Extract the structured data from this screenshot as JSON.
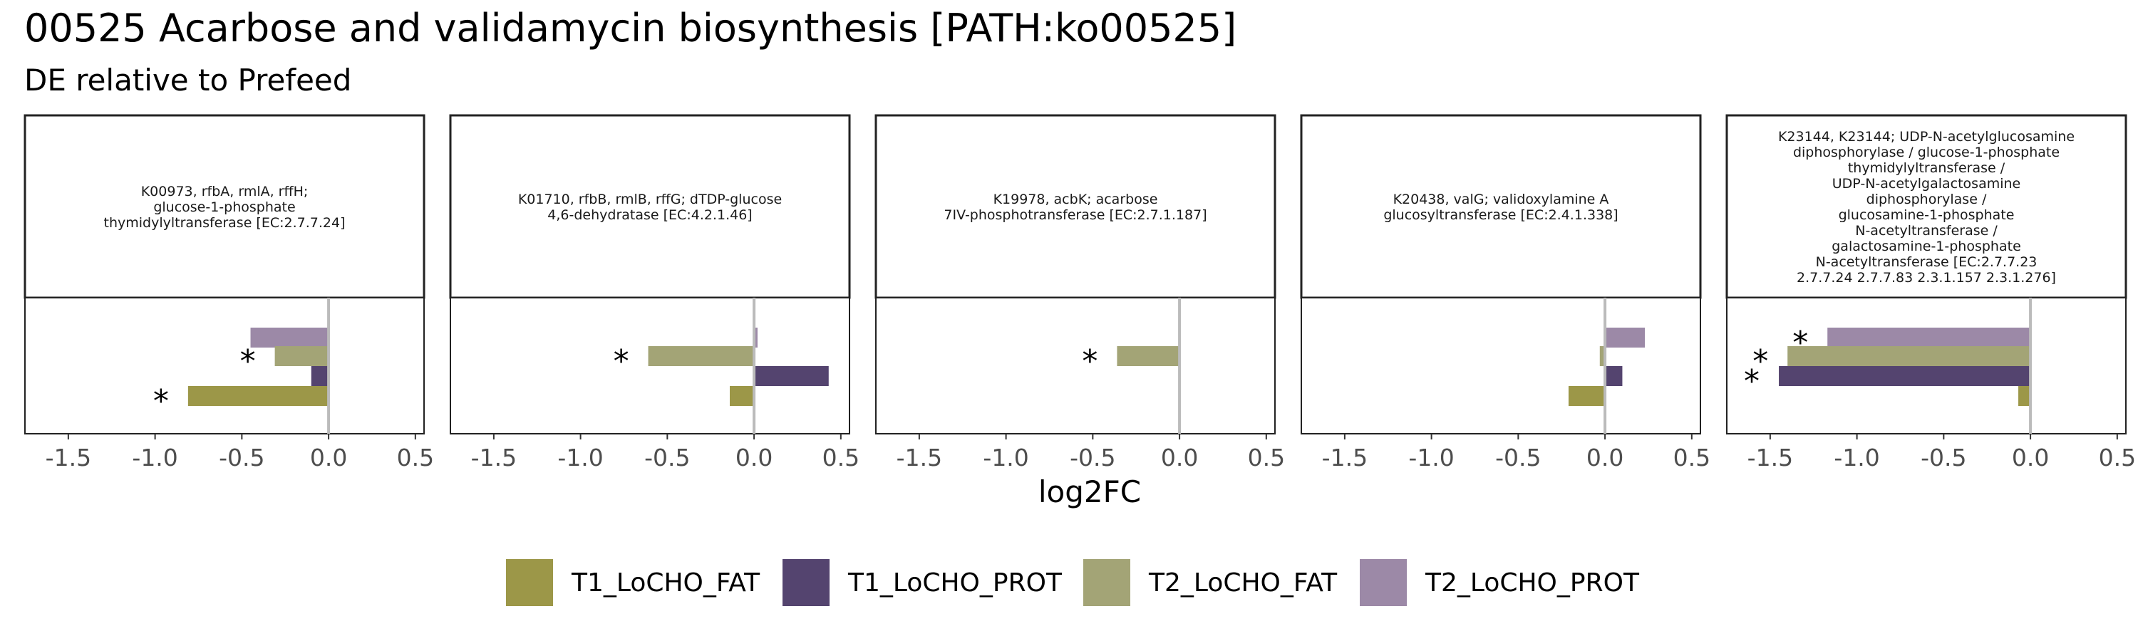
{
  "title": "00525 Acarbose and validamycin biosynthesis [PATH:ko00525]",
  "subtitle": "DE relative to Prefeed",
  "colors": {
    "T1_LoCHO_FAT": "#9C9748",
    "T1_LoCHO_PROT": "#54446F",
    "T2_LoCHO_FAT": "#A3A476",
    "T2_LoCHO_PROT": "#9C89A7",
    "zero_line": "#BBBBBB",
    "frame": "#222222"
  },
  "chart_data": {
    "type": "bar",
    "orientation": "horizontal",
    "xlabel": "log2FC",
    "xlim": [
      -1.75,
      0.55
    ],
    "xticks": [
      -1.5,
      -1.0,
      -0.5,
      0.0,
      0.5
    ],
    "xtick_labels": [
      "-1.5",
      "-1.0",
      "-0.5",
      "0.0",
      "0.5"
    ],
    "grid": false,
    "legend_position": "bottom",
    "series_names": [
      "T2_LoCHO_PROT",
      "T2_LoCHO_FAT",
      "T1_LoCHO_PROT",
      "T1_LoCHO_FAT"
    ],
    "legend": [
      "T1_LoCHO_FAT",
      "T1_LoCHO_PROT",
      "T2_LoCHO_FAT",
      "T2_LoCHO_PROT"
    ],
    "significance_marker": "*",
    "panels": [
      {
        "label": "K00973, rfbA, rmlA, rffH;\nglucose-1-phosphate\nthymidylyltransferase [EC:2.7.7.24]",
        "bars": [
          {
            "series": "T2_LoCHO_PROT",
            "value": -0.45,
            "sig": false
          },
          {
            "series": "T2_LoCHO_FAT",
            "value": -0.31,
            "sig": true
          },
          {
            "series": "T1_LoCHO_PROT",
            "value": -0.1,
            "sig": false
          },
          {
            "series": "T1_LoCHO_FAT",
            "value": -0.81,
            "sig": true
          }
        ]
      },
      {
        "label": "K01710, rfbB, rmlB, rffG; dTDP-glucose\n4,6-dehydratase [EC:4.2.1.46]",
        "bars": [
          {
            "series": "T2_LoCHO_PROT",
            "value": 0.02,
            "sig": false
          },
          {
            "series": "T2_LoCHO_FAT",
            "value": -0.61,
            "sig": true
          },
          {
            "series": "T1_LoCHO_PROT",
            "value": 0.43,
            "sig": false
          },
          {
            "series": "T1_LoCHO_FAT",
            "value": -0.14,
            "sig": false
          }
        ]
      },
      {
        "label": "K19978, acbK; acarbose\n7IV-phosphotransferase [EC:2.7.1.187]",
        "bars": [
          {
            "series": "T2_LoCHO_PROT",
            "value": 0.0,
            "sig": false
          },
          {
            "series": "T2_LoCHO_FAT",
            "value": -0.36,
            "sig": true
          },
          {
            "series": "T1_LoCHO_PROT",
            "value": 0.0,
            "sig": false
          },
          {
            "series": "T1_LoCHO_FAT",
            "value": 0.0,
            "sig": false
          }
        ]
      },
      {
        "label": "K20438, valG; validoxylamine A\nglucosyltransferase [EC:2.4.1.338]",
        "bars": [
          {
            "series": "T2_LoCHO_PROT",
            "value": 0.23,
            "sig": false
          },
          {
            "series": "T2_LoCHO_FAT",
            "value": -0.03,
            "sig": false
          },
          {
            "series": "T1_LoCHO_PROT",
            "value": 0.1,
            "sig": false
          },
          {
            "series": "T1_LoCHO_FAT",
            "value": -0.21,
            "sig": false
          }
        ]
      },
      {
        "label": "K23144, K23144; UDP-N-acetylglucosamine\ndiphosphorylase / glucose-1-phosphate\nthymidylyltransferase /\nUDP-N-acetylgalactosamine\ndiphosphorylase /\nglucosamine-1-phosphate\nN-acetyltransferase /\ngalactosamine-1-phosphate\nN-acetyltransferase [EC:2.7.7.23\n2.7.7.24 2.7.7.83 2.3.1.157 2.3.1.276]",
        "bars": [
          {
            "series": "T2_LoCHO_PROT",
            "value": -1.17,
            "sig": true
          },
          {
            "series": "T2_LoCHO_FAT",
            "value": -1.4,
            "sig": true
          },
          {
            "series": "T1_LoCHO_PROT",
            "value": -1.45,
            "sig": true
          },
          {
            "series": "T1_LoCHO_FAT",
            "value": -0.07,
            "sig": false
          }
        ]
      }
    ]
  }
}
